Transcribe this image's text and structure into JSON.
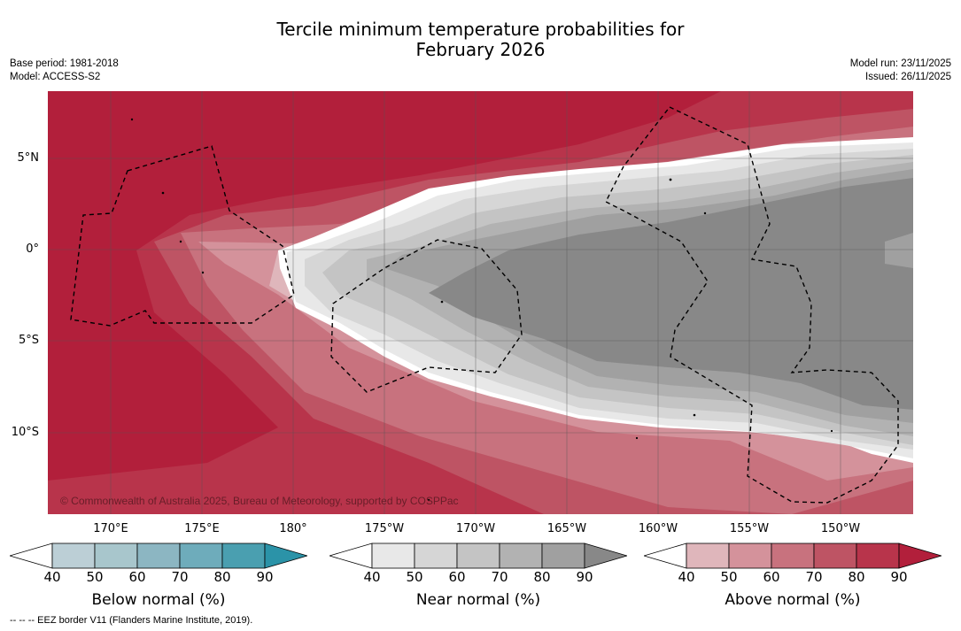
{
  "title_line1": "Tercile minimum temperature probabilities for",
  "title_line2": "February 2026",
  "meta_left": {
    "base_period": "Base period: 1981-2018",
    "model": "Model: ACCESS-S2"
  },
  "meta_right": {
    "model_run": "Model run: 23/11/2025",
    "issued": "Issued: 26/11/2025"
  },
  "lat_labels": [
    "5°N",
    "0°",
    "5°S",
    "10°S"
  ],
  "lon_labels": [
    "170°E",
    "175°E",
    "180°",
    "175°W",
    "170°W",
    "165°W",
    "160°W",
    "155°W",
    "150°W"
  ],
  "credit": "© Commonwealth of Australia 2025, Bureau of Meteorology, supported by COSPPac",
  "colorbars": [
    {
      "label": "Below normal (%)",
      "ticks": [
        "40",
        "50",
        "60",
        "70",
        "80",
        "90"
      ],
      "colors": [
        "#ffffff",
        "#bccfd6",
        "#a8c6cc",
        "#8cb6c2",
        "#6eacbb",
        "#4a9fb0",
        "#2b93a8"
      ]
    },
    {
      "label": "Near normal (%)",
      "ticks": [
        "40",
        "50",
        "60",
        "70",
        "80",
        "90"
      ],
      "colors": [
        "#ffffff",
        "#e8e8e8",
        "#d6d6d6",
        "#c4c4c4",
        "#b2b2b2",
        "#a0a0a0",
        "#888888"
      ]
    },
    {
      "label": "Above normal (%)",
      "ticks": [
        "40",
        "50",
        "60",
        "70",
        "80",
        "90"
      ],
      "colors": [
        "#ffffff",
        "#dfb6bb",
        "#d4929b",
        "#c8727e",
        "#be5464",
        "#b8344b",
        "#b21f3b"
      ]
    }
  ],
  "footnote": "--  --  -- EEZ border V11 (Flanders Marine Institute, 2019)."
}
